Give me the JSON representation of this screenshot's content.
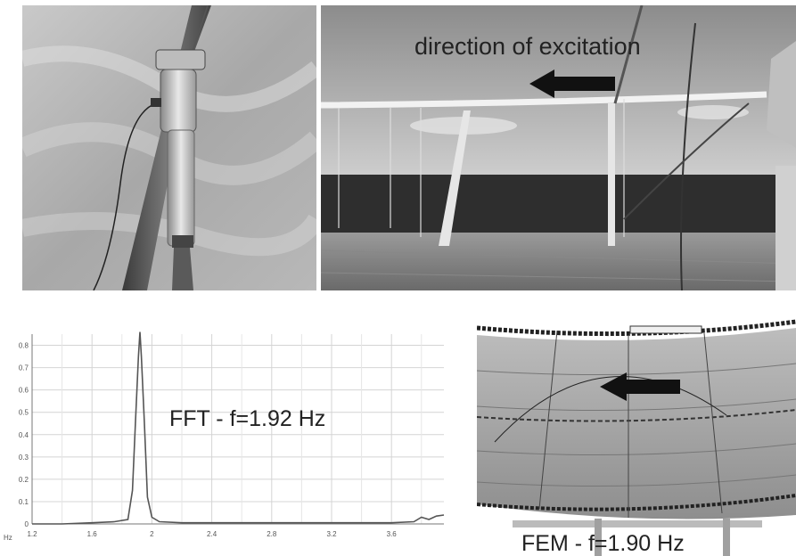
{
  "photo_right": {
    "caption": "direction of excitation"
  },
  "fft": {
    "label": "FFT  - f=1.92 Hz",
    "x_unit": "Hz",
    "y_ticks": [
      "0",
      "0.1",
      "0.2",
      "0.3",
      "0.4",
      "0.5",
      "0.6",
      "0.7",
      "0.8"
    ],
    "x_ticks": [
      "1.2",
      "1.6",
      "2",
      "2.4",
      "2.8",
      "3.2",
      "3.6"
    ]
  },
  "fem": {
    "label": "FEM  - f=1.90 Hz"
  },
  "chart_data": {
    "type": "line",
    "title": "",
    "xlabel": "Hz",
    "ylabel": "",
    "xlim": [
      1.2,
      3.95
    ],
    "ylim": [
      0,
      0.85
    ],
    "grid": true,
    "series": [
      {
        "x": [
          1.2,
          1.4,
          1.6,
          1.75,
          1.84,
          1.87,
          1.89,
          1.91,
          1.92,
          1.93,
          1.95,
          1.97,
          2.0,
          2.05,
          2.2,
          2.6,
          3.0,
          3.4,
          3.6,
          3.75,
          3.8,
          3.85,
          3.9,
          3.95
        ],
        "y": [
          0.0,
          0.0,
          0.005,
          0.01,
          0.02,
          0.15,
          0.45,
          0.75,
          0.86,
          0.75,
          0.45,
          0.12,
          0.03,
          0.01,
          0.005,
          0.005,
          0.005,
          0.005,
          0.005,
          0.01,
          0.03,
          0.02,
          0.035,
          0.04
        ]
      }
    ]
  }
}
